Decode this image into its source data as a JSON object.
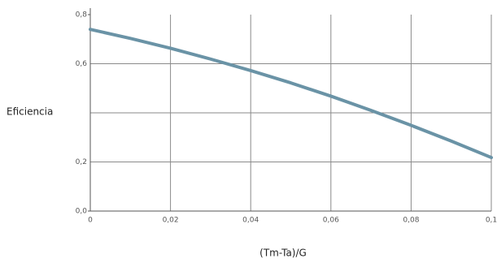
{
  "chart_data": {
    "type": "line",
    "y_label": "Eficiencia",
    "x_label": "(Tm-Ta)/G",
    "x": [
      0,
      0.01,
      0.02,
      0.03,
      0.04,
      0.05,
      0.06,
      0.07,
      0.08,
      0.09,
      0.1
    ],
    "series": [
      {
        "color": "#6a93a6",
        "values": [
          0.74,
          0.703,
          0.663,
          0.619,
          0.572,
          0.522,
          0.468,
          0.41,
          0.349,
          0.285,
          0.218
        ]
      }
    ],
    "xlim": [
      0,
      0.1
    ],
    "ylim": [
      0,
      0.8
    ],
    "xticks": [
      0,
      {
        "value": 0.02,
        "label": "0,02"
      },
      {
        "value": 0.04,
        "label": "0,04"
      },
      {
        "value": 0.06,
        "label": "0,06"
      },
      {
        "value": 0.08,
        "label": "0,08"
      },
      {
        "value": 0.1,
        "label": "0,1"
      }
    ],
    "yticks": [
      {
        "value": 0,
        "label": "0,0"
      },
      {
        "value": 0.2,
        "label": "0,2"
      },
      {
        "value": 0.4,
        "label": null
      },
      {
        "value": 0.6,
        "label": "0,6"
      },
      {
        "value": 0.8,
        "label": "0,8"
      }
    ],
    "grid": true
  }
}
